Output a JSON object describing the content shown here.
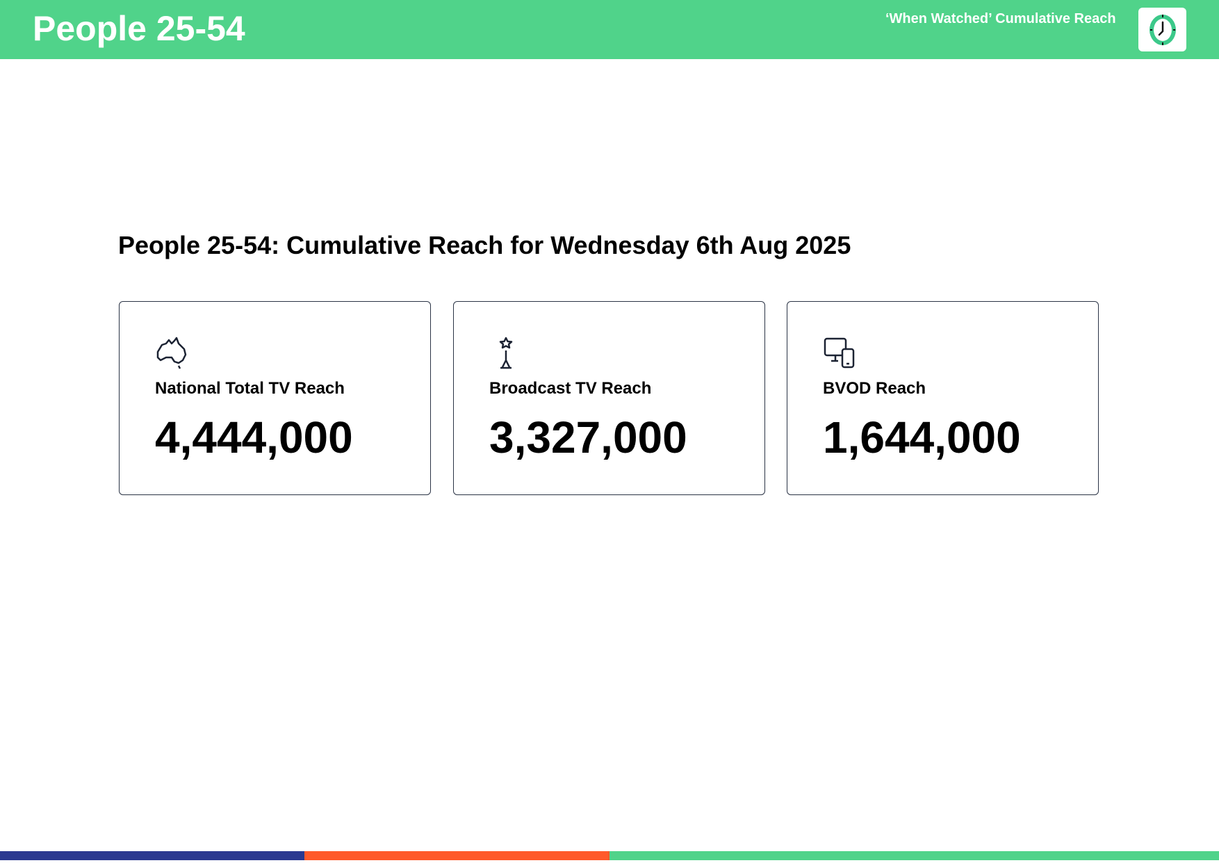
{
  "header": {
    "title": "People 25-54",
    "subtitle": "‘When Watched’ Cumulative Reach",
    "icon": "clock-icon",
    "background_color": "#50D38A"
  },
  "main": {
    "heading": "People 25-54: Cumulative Reach for Wednesday 6th Aug 2025",
    "cards": [
      {
        "label": "National Total TV Reach",
        "value": "4,444,000",
        "icon": "australia-map-icon"
      },
      {
        "label": "Broadcast TV Reach",
        "value": "3,327,000",
        "icon": "broadcast-tower-icon"
      },
      {
        "label": "BVOD Reach",
        "value": "1,644,000",
        "icon": "devices-icon"
      }
    ]
  },
  "footer": {
    "bar_colors": [
      "#2B3990",
      "#FF5A2A",
      "#50D38A"
    ]
  }
}
